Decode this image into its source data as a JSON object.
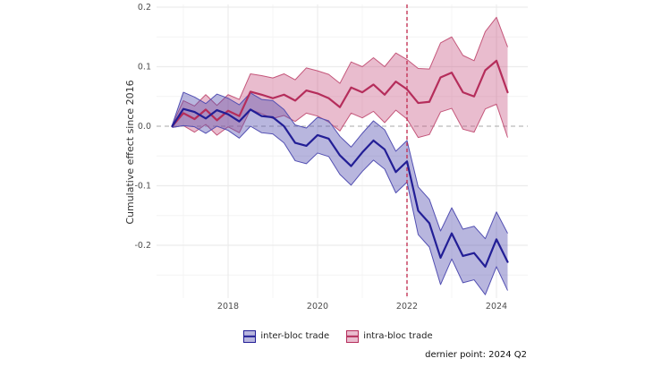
{
  "figure": {
    "background": "#ffffff"
  },
  "chart_data": {
    "type": "line",
    "title": "",
    "xlabel": "",
    "ylabel": "Cumulative effect since 2016",
    "caption": "dernier point: 2024 Q2",
    "grid": true,
    "legend_position": "bottom-center",
    "xlim": [
      2016.4,
      2024.7
    ],
    "ylim": [
      -0.287,
      0.205
    ],
    "x_tick_labels": [
      "2018",
      "2020",
      "2022",
      "2024"
    ],
    "x_tick_values": [
      2018,
      2020,
      2022,
      2024
    ],
    "x_minor_values": [
      2017,
      2019,
      2021,
      2023
    ],
    "y_tick_labels": [
      "0.2",
      "0.1",
      "0.0",
      "-0.1",
      "-0.2"
    ],
    "y_tick_values": [
      0.2,
      0.1,
      0,
      -0.1,
      -0.2
    ],
    "y_minor_values": [
      0.15,
      0.05,
      -0.05,
      -0.15,
      -0.25
    ],
    "reference_lines": {
      "vertical_x": 2022,
      "horizontal_y": 0
    },
    "periods": [
      "2016 Q4",
      "2017 Q1",
      "2017 Q2",
      "2017 Q3",
      "2017 Q4",
      "2018 Q1",
      "2018 Q2",
      "2018 Q3",
      "2018 Q4",
      "2019 Q1",
      "2019 Q2",
      "2019 Q3",
      "2019 Q4",
      "2020 Q1",
      "2020 Q2",
      "2020 Q3",
      "2020 Q4",
      "2021 Q1",
      "2021 Q2",
      "2021 Q3",
      "2021 Q4",
      "2022 Q1",
      "2022 Q2",
      "2022 Q3",
      "2022 Q4",
      "2023 Q1",
      "2023 Q2",
      "2023 Q3",
      "2023 Q4",
      "2024 Q1",
      "2024 Q2"
    ],
    "x": [
      2016.75,
      2017.0,
      2017.25,
      2017.5,
      2017.75,
      2018.0,
      2018.25,
      2018.5,
      2018.75,
      2019.0,
      2019.25,
      2019.5,
      2019.75,
      2020.0,
      2020.25,
      2020.5,
      2020.75,
      2021.0,
      2021.25,
      2021.5,
      2021.75,
      2022.0,
      2022.25,
      2022.5,
      2022.75,
      2023.0,
      2023.25,
      2023.5,
      2023.75,
      2024.0,
      2024.25
    ],
    "series": [
      {
        "name": "inter-bloc trade",
        "line_color": "#221e96",
        "fill_color": "rgba(85,82,176,0.42)",
        "edge_color": "#524fb2",
        "values": [
          0.0,
          0.029,
          0.024,
          0.013,
          0.027,
          0.02,
          0.008,
          0.028,
          0.017,
          0.015,
          0.0,
          -0.028,
          -0.033,
          -0.015,
          -0.021,
          -0.049,
          -0.067,
          -0.044,
          -0.024,
          -0.039,
          -0.077,
          -0.059,
          -0.142,
          -0.163,
          -0.221,
          -0.18,
          -0.218,
          -0.213,
          -0.236,
          -0.19,
          -0.228
        ],
        "upper": [
          0.002,
          0.057,
          0.049,
          0.038,
          0.054,
          0.047,
          0.036,
          0.056,
          0.045,
          0.043,
          0.028,
          0.002,
          -0.003,
          0.015,
          0.009,
          -0.017,
          -0.035,
          -0.012,
          0.009,
          -0.006,
          -0.042,
          -0.024,
          -0.102,
          -0.123,
          -0.176,
          -0.137,
          -0.173,
          -0.168,
          -0.189,
          -0.144,
          -0.18
        ],
        "lower": [
          -0.002,
          0.001,
          -0.001,
          -0.012,
          0.0,
          -0.007,
          -0.02,
          0.0,
          -0.011,
          -0.013,
          -0.028,
          -0.058,
          -0.063,
          -0.045,
          -0.051,
          -0.081,
          -0.099,
          -0.076,
          -0.057,
          -0.072,
          -0.112,
          -0.094,
          -0.182,
          -0.203,
          -0.266,
          -0.223,
          -0.263,
          -0.258,
          -0.283,
          -0.236,
          -0.276
        ]
      },
      {
        "name": "intra-bloc trade",
        "line_color": "#b52d5b",
        "fill_color": "rgba(198,80,125,0.38)",
        "edge_color": "#c4567a",
        "values": [
          0.0,
          0.022,
          0.012,
          0.028,
          0.01,
          0.026,
          0.017,
          0.058,
          0.053,
          0.047,
          0.053,
          0.043,
          0.06,
          0.055,
          0.047,
          0.032,
          0.065,
          0.057,
          0.07,
          0.053,
          0.075,
          0.062,
          0.039,
          0.041,
          0.082,
          0.09,
          0.057,
          0.05,
          0.094,
          0.11,
          0.057
        ],
        "upper": [
          0.002,
          0.043,
          0.034,
          0.053,
          0.035,
          0.053,
          0.045,
          0.088,
          0.085,
          0.081,
          0.088,
          0.078,
          0.098,
          0.093,
          0.087,
          0.072,
          0.108,
          0.1,
          0.115,
          0.1,
          0.123,
          0.112,
          0.097,
          0.096,
          0.14,
          0.15,
          0.119,
          0.11,
          0.159,
          0.183,
          0.133
        ],
        "lower": [
          -0.002,
          0.001,
          -0.01,
          0.003,
          -0.015,
          -0.001,
          -0.011,
          0.028,
          0.021,
          0.013,
          0.018,
          0.008,
          0.022,
          0.017,
          0.007,
          -0.008,
          0.022,
          0.014,
          0.025,
          0.006,
          0.027,
          0.012,
          -0.019,
          -0.014,
          0.024,
          0.03,
          -0.005,
          -0.01,
          0.029,
          0.037,
          -0.019
        ]
      }
    ],
    "colors": {
      "event_line": "#c22a4e",
      "zero_line": "#a9a9a9",
      "grid_major": "#ececec",
      "grid_minor": "#f4f4f4",
      "tick_text": "#4d4d4d",
      "axis_title_text": "#333333",
      "caption_text": "#111111",
      "legend_text": "#222222"
    }
  }
}
